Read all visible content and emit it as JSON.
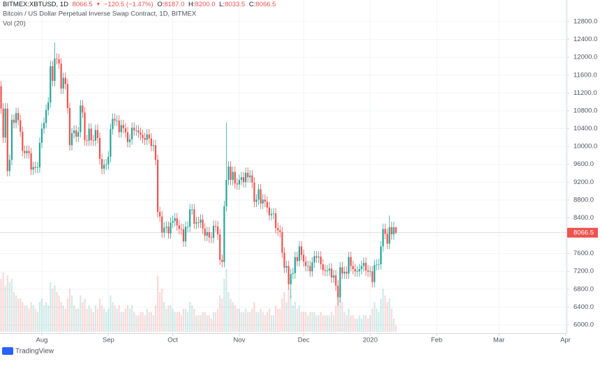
{
  "chart_data": {
    "type": "candlestick",
    "header": {
      "symbol": "BITMEX:XBTUSD, 1D",
      "last": "8066.5",
      "arrow": "▼",
      "change": "−120.5 (−1.47%)",
      "o_key": "O:",
      "o_val": "8187.0",
      "h_key": "H:",
      "h_val": "8200.0",
      "l_key": "L:",
      "l_val": "8033.5",
      "c_key": "C:",
      "c_val": "8066.5"
    },
    "title": "Bitcoin / US Dollar Perpetual Inverse Swap Contract, 1D, BITMEX",
    "volume_label": "Vol (20)",
    "brand": "TradingView",
    "up_color": "#26a69a",
    "down_color": "#ef5350",
    "grid": true,
    "xlim": [
      -0.5,
      263.5
    ],
    "xticks": [
      {
        "value": 19,
        "label": "Aug"
      },
      {
        "value": 50,
        "label": "Sep"
      },
      {
        "value": 80,
        "label": "Oct"
      },
      {
        "value": 111,
        "label": "Nov"
      },
      {
        "value": 141,
        "label": "Dec"
      },
      {
        "value": 172,
        "label": "2020"
      },
      {
        "value": 203,
        "label": "Feb"
      },
      {
        "value": 232,
        "label": "Mar"
      },
      {
        "value": 263,
        "label": "Apr"
      }
    ],
    "ylim": [
      5812,
      13285
    ],
    "yticks": [
      {
        "value": 6000,
        "label": "6000.0"
      },
      {
        "value": 6400,
        "label": "6400.0"
      },
      {
        "value": 6800,
        "label": "6800.0"
      },
      {
        "value": 7200,
        "label": "7200.0"
      },
      {
        "value": 7600,
        "label": "7600.0"
      },
      {
        "value": 8000,
        "label": "8000.0"
      },
      {
        "value": 8400,
        "label": "8400.0"
      },
      {
        "value": 8800,
        "label": "8800.0"
      },
      {
        "value": 9200,
        "label": "9200.0"
      },
      {
        "value": 9600,
        "label": "9600.0"
      },
      {
        "value": 10000,
        "label": "10000.0"
      },
      {
        "value": 10400,
        "label": "10400.0"
      },
      {
        "value": 10800,
        "label": "10800.0"
      },
      {
        "value": 11200,
        "label": "11200.0"
      },
      {
        "value": 11600,
        "label": "11600.0"
      },
      {
        "value": 12000,
        "label": "12000.0"
      },
      {
        "value": 12400,
        "label": "12400.0"
      },
      {
        "value": 12800,
        "label": "12800.0"
      }
    ],
    "open": [
      11350,
      10850,
      10200,
      10850,
      9450,
      9700,
      10600,
      10530,
      10750,
      10590,
      10330,
      9900,
      9850,
      9900,
      9850,
      9480,
      9540,
      9520,
      9530,
      10080,
      10400,
      10530,
      10820,
      10990,
      11800,
      11470,
      11970,
      11960,
      11860,
      11300,
      11540,
      11400,
      10860,
      10030,
      10300,
      10360,
      10220,
      10320,
      10920,
      10760,
      10140,
      10130,
      10400,
      10140,
      10130,
      10370,
      10190,
      9720,
      9500,
      9590,
      9600,
      9770,
      10390,
      10620,
      10580,
      10580,
      10320,
      10480,
      10410,
      10320,
      10100,
      10160,
      10420,
      10360,
      10360,
      10310,
      10260,
      10190,
      10150,
      10270,
      10180,
      10010,
      10030,
      9700,
      8530,
      8430,
      8070,
      8180,
      8200,
      8050,
      8290,
      8330,
      8390,
      8230,
      8150,
      8140,
      7870,
      8200,
      8200,
      8590,
      8590,
      8270,
      8300,
      8290,
      8360,
      8160,
      8000,
      8080,
      7960,
      7950,
      8220,
      8210,
      8030,
      7460,
      7410,
      8660,
      9250,
      9550,
      9250,
      9430,
      9170,
      9150,
      9250,
      9310,
      9200,
      9410,
      9310,
      9350,
      9190,
      8760,
      8810,
      9040,
      8720,
      8810,
      8760,
      8630,
      8460,
      8490,
      8500,
      8170,
      8120,
      8080,
      7620,
      7280,
      7320,
      6910,
      7140,
      7160,
      7520,
      7430,
      7760,
      7570,
      7420,
      7320,
      7320,
      7200,
      7400,
      7540,
      7510,
      7530,
      7360,
      7230,
      7210,
      7220,
      7260,
      7060,
      7110,
      6880,
      6620,
      7290,
      7150,
      7190,
      7150,
      7520,
      7320,
      7250,
      7200,
      7200,
      7250,
      7320,
      7390,
      7220,
      7190,
      7200,
      6960,
      7340,
      7350,
      7360,
      7760,
      8150,
      8040,
      7820,
      8190,
      8030,
      8187
    ],
    "high": [
      11470,
      10970,
      10970,
      10970,
      9820,
      10720,
      10720,
      10870,
      10870,
      10710,
      10450,
      10020,
      10020,
      10020,
      9970,
      9660,
      9660,
      9650,
      10200,
      10520,
      10650,
      10940,
      11110,
      11920,
      11920,
      12330,
      12090,
      12080,
      11980,
      11660,
      11660,
      11520,
      10980,
      10420,
      10480,
      10480,
      10440,
      11040,
      11040,
      10880,
      10260,
      10520,
      10520,
      10260,
      10490,
      10490,
      10310,
      9840,
      9710,
      9720,
      9890,
      10510,
      10740,
      10740,
      10700,
      10700,
      10600,
      10600,
      10530,
      10440,
      10280,
      10540,
      10540,
      10480,
      10480,
      10430,
      10380,
      10310,
      10390,
      10390,
      10300,
      10150,
      10150,
      9820,
      8650,
      8550,
      8300,
      8320,
      8320,
      8410,
      8450,
      8510,
      8510,
      8350,
      8270,
      8260,
      8320,
      8320,
      8710,
      8710,
      8710,
      8420,
      8420,
      8480,
      8480,
      8280,
      8200,
      8200,
      8080,
      8340,
      8340,
      8330,
      8150,
      7580,
      8780,
      10540,
      9670,
      9670,
      9550,
      9550,
      9290,
      9370,
      9430,
      9430,
      9530,
      9530,
      9470,
      9470,
      9310,
      8930,
      9160,
      9160,
      8930,
      8930,
      8880,
      8750,
      8610,
      8620,
      8620,
      8290,
      8240,
      8200,
      7740,
      7440,
      7440,
      7260,
      7280,
      7640,
      7640,
      7880,
      7880,
      7690,
      7540,
      7440,
      7440,
      7520,
      7660,
      7660,
      7650,
      7650,
      7480,
      7350,
      7340,
      7380,
      7380,
      7230,
      7230,
      7000,
      7410,
      7410,
      7310,
      7310,
      7640,
      7640,
      7440,
      7370,
      7320,
      7370,
      7440,
      7510,
      7510,
      7340,
      7320,
      7320,
      7460,
      7470,
      7480,
      7880,
      8270,
      8270,
      8160,
      8450,
      8310,
      8310,
      8200
    ],
    "low": [
      10730,
      10080,
      10080,
      9330,
      9330,
      9580,
      10410,
      10410,
      10470,
      10210,
      9780,
      9730,
      9730,
      9730,
      9360,
      9360,
      9400,
      9400,
      9410,
      9960,
      10280,
      10410,
      10700,
      10870,
      11350,
      11350,
      11840,
      11740,
      11180,
      11180,
      11280,
      10740,
      9910,
      9910,
      10180,
      10100,
      10100,
      10200,
      10640,
      10020,
      10010,
      10010,
      10020,
      10010,
      10010,
      10070,
      9600,
      9380,
      9380,
      9470,
      9480,
      9650,
      10270,
      10460,
      10460,
      10200,
      10200,
      10290,
      10200,
      9980,
      9980,
      10040,
      10240,
      10240,
      10190,
      10140,
      10070,
      10030,
      10030,
      10060,
      9890,
      9890,
      9580,
      8410,
      8310,
      7950,
      7950,
      8060,
      7930,
      7930,
      8170,
      8210,
      8110,
      8030,
      8020,
      7750,
      7750,
      8080,
      8080,
      8470,
      8150,
      8150,
      8170,
      8170,
      8040,
      7880,
      7880,
      7840,
      7830,
      7830,
      8090,
      7910,
      7340,
      7290,
      7290,
      8540,
      9130,
      9130,
      9130,
      9050,
      9030,
      9030,
      9130,
      9080,
      9080,
      9190,
      9190,
      9070,
      8640,
      8640,
      8690,
      8600,
      8600,
      8640,
      8510,
      8340,
      8340,
      8370,
      8050,
      8000,
      7960,
      7500,
      7160,
      7160,
      6790,
      6600,
      7020,
      7040,
      7310,
      7310,
      7450,
      7300,
      7200,
      7200,
      7080,
      7080,
      7280,
      7390,
      7390,
      7240,
      7110,
      7090,
      7090,
      7100,
      6940,
      6940,
      6760,
      6430,
      6500,
      7030,
      7030,
      7030,
      7030,
      7200,
      7130,
      7080,
      7080,
      7080,
      7130,
      7200,
      7100,
      7070,
      7070,
      6840,
      6840,
      7220,
      7230,
      7240,
      7640,
      7920,
      7700,
      7700,
      7910,
      7910,
      8033.5
    ],
    "close": [
      10850,
      10200,
      10850,
      9450,
      9700,
      10600,
      10530,
      10750,
      10590,
      10330,
      9900,
      9850,
      9900,
      9850,
      9480,
      9540,
      9520,
      9530,
      10080,
      10400,
      10530,
      10820,
      10990,
      11800,
      11470,
      11970,
      11960,
      11860,
      11300,
      11540,
      11400,
      10860,
      10030,
      10300,
      10360,
      10220,
      10320,
      10920,
      10760,
      10140,
      10130,
      10400,
      10140,
      10130,
      10370,
      10190,
      9720,
      9500,
      9590,
      9600,
      9770,
      10390,
      10620,
      10580,
      10580,
      10320,
      10480,
      10410,
      10320,
      10100,
      10160,
      10420,
      10360,
      10360,
      10310,
      10260,
      10190,
      10150,
      10270,
      10180,
      10010,
      10030,
      9700,
      8530,
      8430,
      8070,
      8180,
      8200,
      8050,
      8290,
      8330,
      8390,
      8230,
      8150,
      8140,
      7870,
      8200,
      8200,
      8590,
      8590,
      8270,
      8300,
      8290,
      8360,
      8160,
      8000,
      8080,
      7960,
      7950,
      8220,
      8210,
      8030,
      7460,
      7410,
      8660,
      9250,
      9550,
      9250,
      9430,
      9170,
      9150,
      9250,
      9310,
      9200,
      9410,
      9310,
      9350,
      9190,
      8760,
      8810,
      9040,
      8720,
      8810,
      8760,
      8630,
      8460,
      8490,
      8500,
      8170,
      8120,
      8080,
      7620,
      7280,
      7320,
      6910,
      7140,
      7160,
      7520,
      7430,
      7760,
      7570,
      7420,
      7320,
      7320,
      7200,
      7400,
      7540,
      7510,
      7530,
      7360,
      7230,
      7210,
      7220,
      7260,
      7060,
      7110,
      6880,
      6620,
      7290,
      7150,
      7190,
      7150,
      7520,
      7320,
      7250,
      7200,
      7200,
      7250,
      7320,
      7390,
      7220,
      7190,
      7200,
      6960,
      7340,
      7350,
      7360,
      7760,
      8150,
      8040,
      7820,
      8190,
      8030,
      8187,
      8066.5
    ],
    "volume_lim": [
      0,
      100
    ],
    "volume": [
      80,
      90,
      70,
      85,
      75,
      80,
      60,
      55,
      50,
      50,
      45,
      40,
      40,
      35,
      45,
      40,
      35,
      30,
      45,
      50,
      40,
      45,
      40,
      75,
      65,
      70,
      60,
      55,
      45,
      40,
      35,
      50,
      65,
      55,
      40,
      35,
      35,
      55,
      45,
      50,
      35,
      40,
      35,
      30,
      40,
      35,
      50,
      40,
      35,
      30,
      35,
      55,
      45,
      40,
      35,
      40,
      30,
      30,
      35,
      40,
      35,
      40,
      30,
      25,
      25,
      30,
      30,
      25,
      35,
      30,
      30,
      25,
      40,
      85,
      60,
      65,
      45,
      35,
      40,
      40,
      35,
      30,
      30,
      30,
      25,
      35,
      35,
      30,
      45,
      40,
      35,
      25,
      25,
      25,
      30,
      30,
      25,
      25,
      20,
      30,
      30,
      35,
      55,
      50,
      80,
      95,
      60,
      50,
      45,
      40,
      35,
      35,
      30,
      30,
      35,
      30,
      30,
      35,
      45,
      30,
      30,
      35,
      30,
      25,
      30,
      35,
      25,
      25,
      40,
      35,
      35,
      50,
      60,
      45,
      65,
      55,
      40,
      45,
      35,
      40,
      30,
      30,
      30,
      25,
      30,
      30,
      30,
      25,
      25,
      30,
      25,
      25,
      25,
      25,
      30,
      25,
      40,
      60,
      75,
      45,
      30,
      25,
      35,
      25,
      25,
      20,
      20,
      25,
      20,
      25,
      25,
      20,
      25,
      35,
      45,
      35,
      30,
      50,
      65,
      55,
      45,
      50,
      35,
      20,
      10
    ]
  }
}
